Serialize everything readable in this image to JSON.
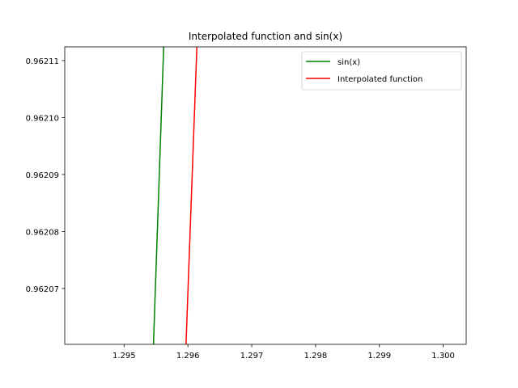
{
  "chart_data": {
    "type": "line",
    "title": "Interpolated function and sin(x)",
    "xlabel": "",
    "ylabel": "",
    "xlim": [
      1.29407,
      1.30036
    ],
    "ylim": [
      0.9620602,
      0.9621124
    ],
    "x_ticks": [
      "1.295",
      "1.296",
      "1.297",
      "1.298",
      "1.299",
      "1.300"
    ],
    "x_tick_values": [
      1.295,
      1.296,
      1.297,
      1.298,
      1.299,
      1.3
    ],
    "y_ticks": [
      "0.96207",
      "0.96208",
      "0.96209",
      "0.96210",
      "0.96211"
    ],
    "y_tick_values": [
      0.96207,
      0.96208,
      0.96209,
      0.9621,
      0.96211
    ],
    "grid": false,
    "legend_position": "top-right",
    "series": [
      {
        "name": "sin(x)",
        "color": "#008000",
        "x": [
          1.29546,
          1.29562
        ],
        "y": [
          0.9620602,
          0.9621124
        ]
      },
      {
        "name": "Interpolated function",
        "color": "#ff0000",
        "x": [
          1.29597,
          1.29614
        ],
        "y": [
          0.9620602,
          0.9621124
        ]
      }
    ]
  }
}
